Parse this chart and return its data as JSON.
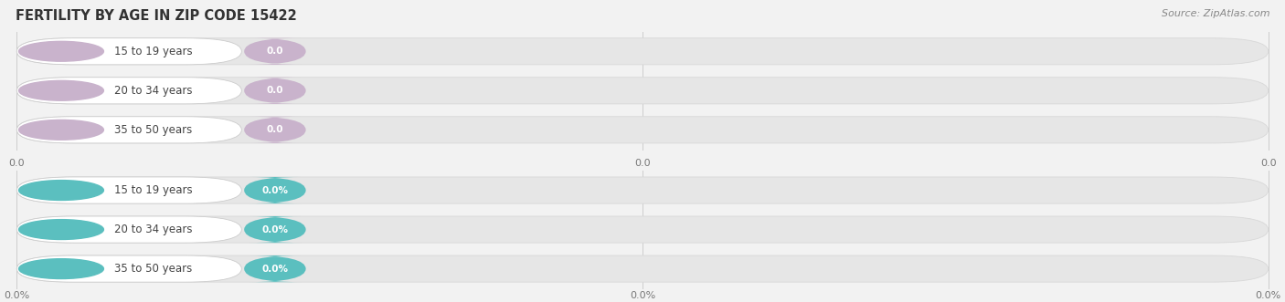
{
  "title": "FERTILITY BY AGE IN ZIP CODE 15422",
  "source": "Source: ZipAtlas.com",
  "top_group": {
    "labels": [
      "15 to 19 years",
      "20 to 34 years",
      "35 to 50 years"
    ],
    "values": [
      0.0,
      0.0,
      0.0
    ],
    "bar_color": "#c9b3cc",
    "value_format": "0.0"
  },
  "bottom_group": {
    "labels": [
      "15 to 19 years",
      "20 to 34 years",
      "35 to 50 years"
    ],
    "values": [
      0.0,
      0.0,
      0.0
    ],
    "bar_color": "#5bbfbf",
    "value_format": "0.0%"
  },
  "background_color": "#f2f2f2",
  "bar_bg_color": "#e6e6e6",
  "bar_bg_edge_color": "#d8d8d8",
  "white_label_bg": "#ffffff",
  "fig_width": 14.06,
  "fig_height": 3.31,
  "dpi": 100,
  "x_tick_labels_top": [
    "0.0",
    "0.0",
    "0.0"
  ],
  "x_tick_labels_bottom": [
    "0.0%",
    "0.0%",
    "0.0%"
  ]
}
